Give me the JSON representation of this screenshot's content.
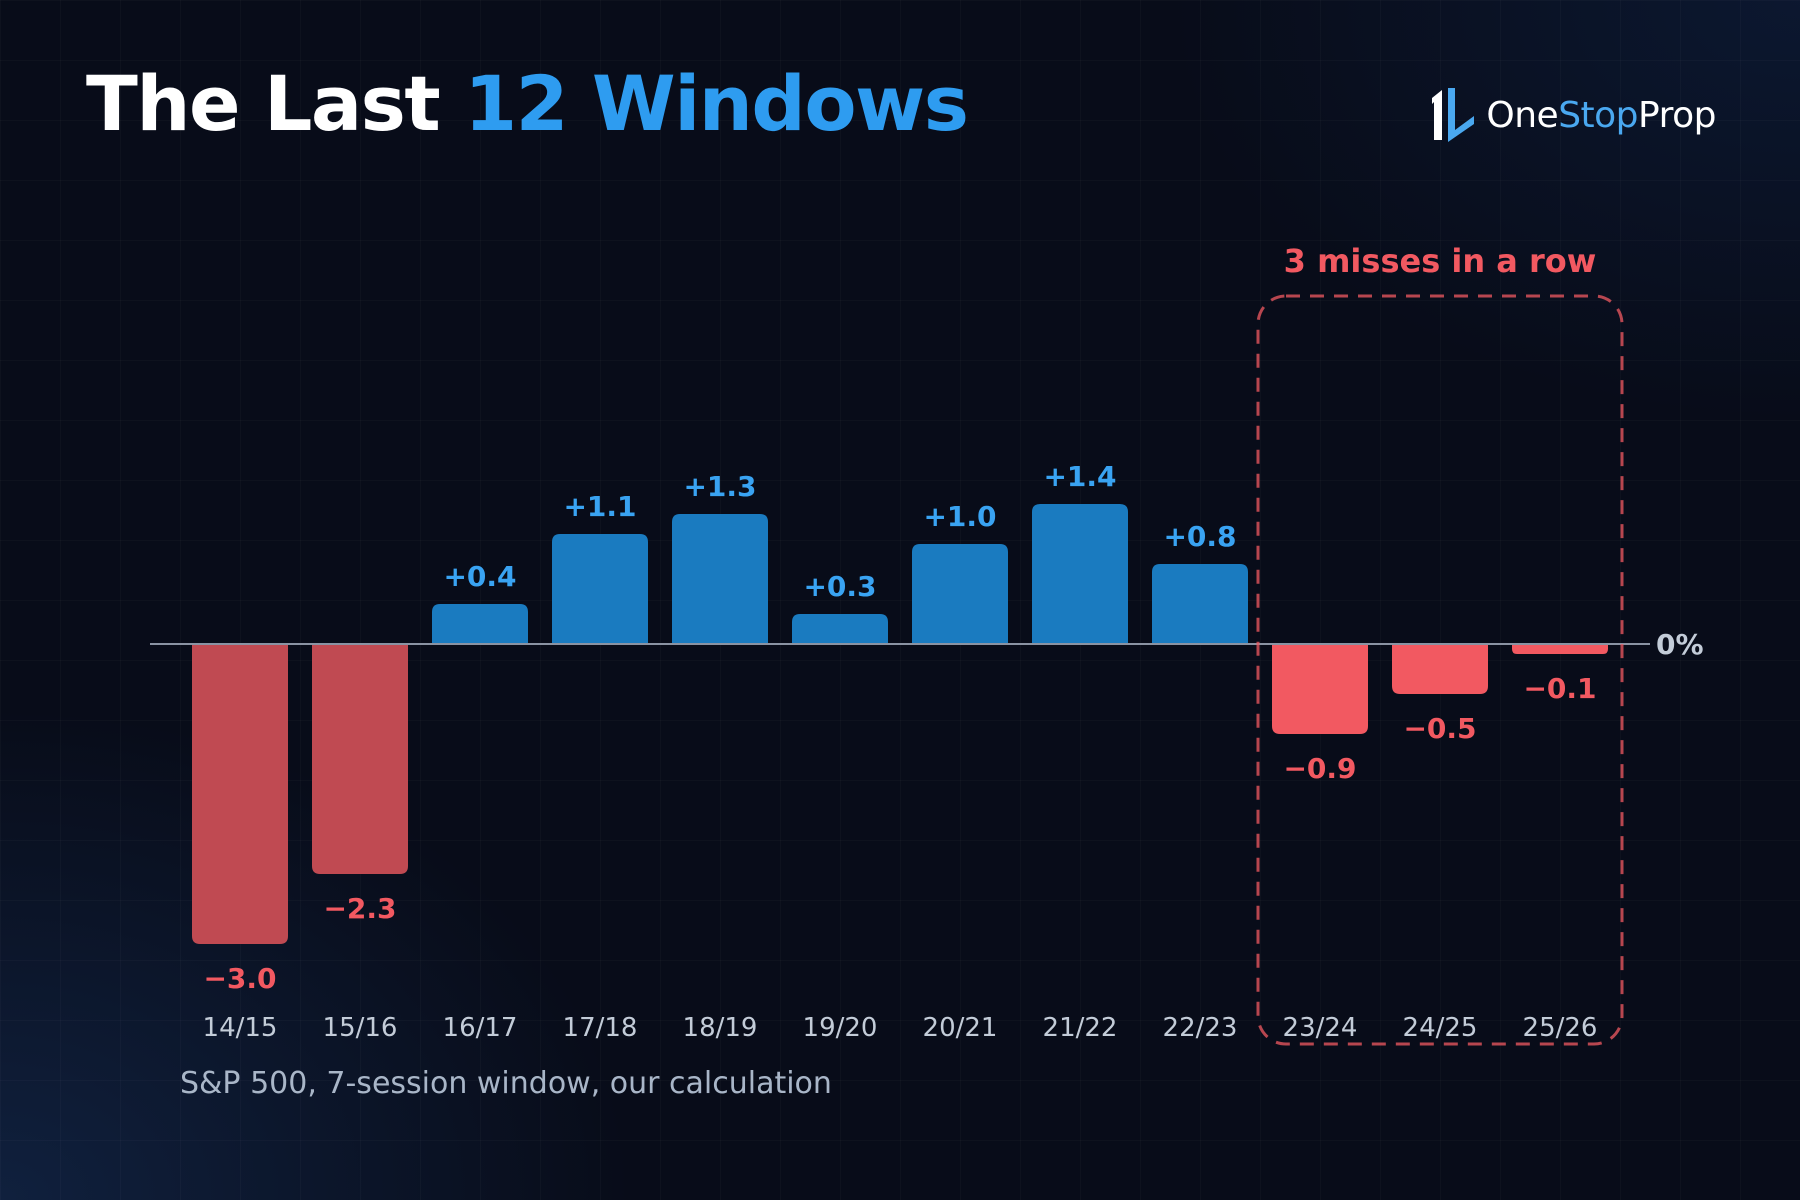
{
  "header": {
    "title_part1": "The Last",
    "title_part2": "12 Windows"
  },
  "logo": {
    "part1": "One",
    "part2": "Stop",
    "part3": "Prop",
    "icon": "onestopprop-logo-icon"
  },
  "footnote": "S&P 500, 7-session window, our calculation",
  "colors": {
    "positive": "#1a7bc0",
    "positive_label": "#39a3f2",
    "negative_early": "#c04a52",
    "negative_recent": "#f25961",
    "negative_label": "#f25961",
    "highlight": "#f25961",
    "axis": "#8a93a3",
    "tick_label": "#c3ccd8"
  },
  "chart_data": {
    "type": "bar",
    "categories": [
      "14/15",
      "15/16",
      "16/17",
      "17/18",
      "18/19",
      "19/20",
      "20/21",
      "21/22",
      "22/23",
      "23/24",
      "24/25",
      "25/26"
    ],
    "values": [
      -3.0,
      -2.3,
      0.4,
      1.1,
      1.3,
      0.3,
      1.0,
      1.4,
      0.8,
      -0.9,
      -0.5,
      -0.1
    ],
    "data_labels": [
      "−3.0",
      "−2.3",
      "+0.4",
      "+1.1",
      "+1.3",
      "+0.3",
      "+1.0",
      "+1.4",
      "+0.8",
      "−0.9",
      "−0.5",
      "−0.1"
    ],
    "zero_label": "0%",
    "ylim": [
      -3.0,
      1.4
    ],
    "grid": false,
    "annotation": {
      "text": "3 misses in a row",
      "categories": [
        "23/24",
        "24/25",
        "25/26"
      ]
    }
  }
}
